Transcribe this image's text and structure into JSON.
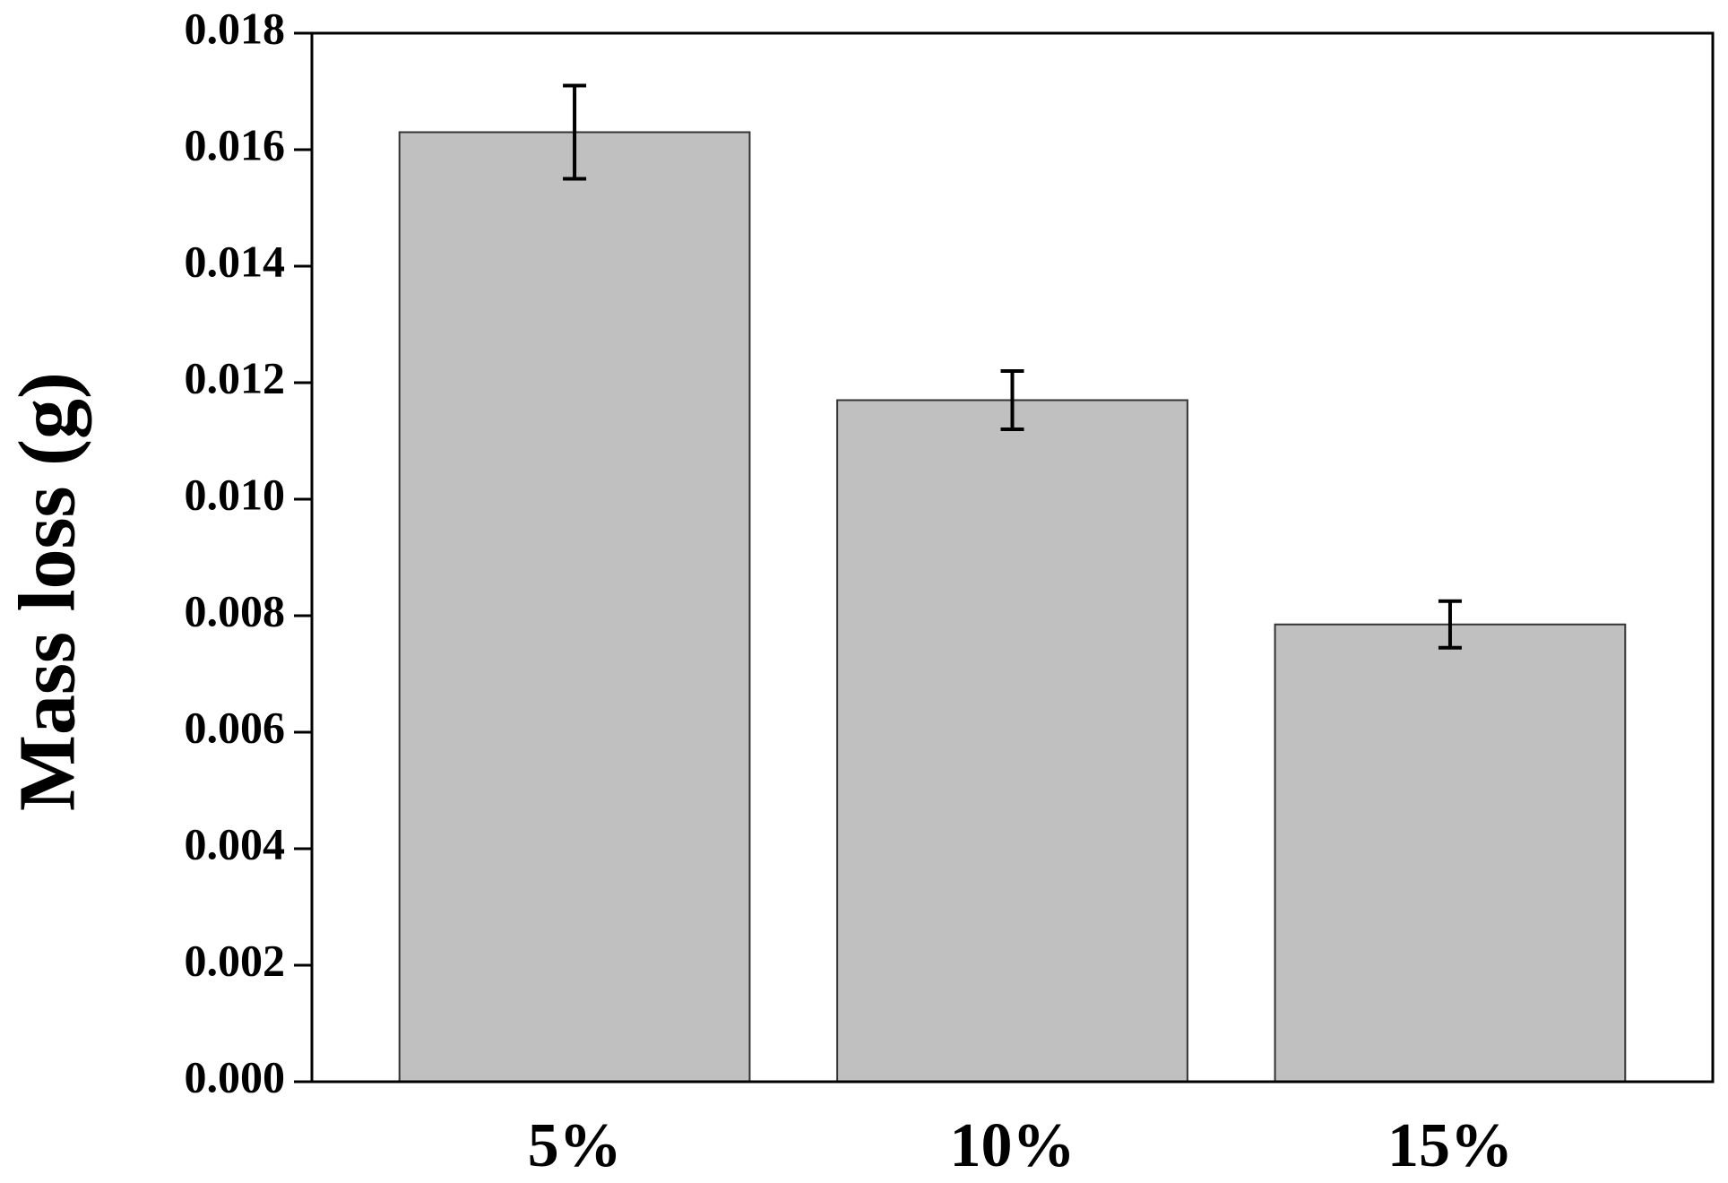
{
  "chart_data": {
    "type": "bar",
    "y_label": "Mass loss (g)",
    "categories": [
      "5%",
      "10%",
      "15%"
    ],
    "values": [
      0.0163,
      0.0117,
      0.00785
    ],
    "errors": [
      0.0008,
      0.0005,
      0.0004
    ],
    "color": "#c0c0c0",
    "ylim": [
      0,
      0.018
    ],
    "yticks": [
      {
        "value": 0,
        "label": "0.000"
      },
      0.002,
      0.004,
      0.006,
      0.008,
      {
        "value": 0.01,
        "label": "0.010"
      },
      0.012,
      0.014,
      0.016,
      0.018
    ]
  }
}
